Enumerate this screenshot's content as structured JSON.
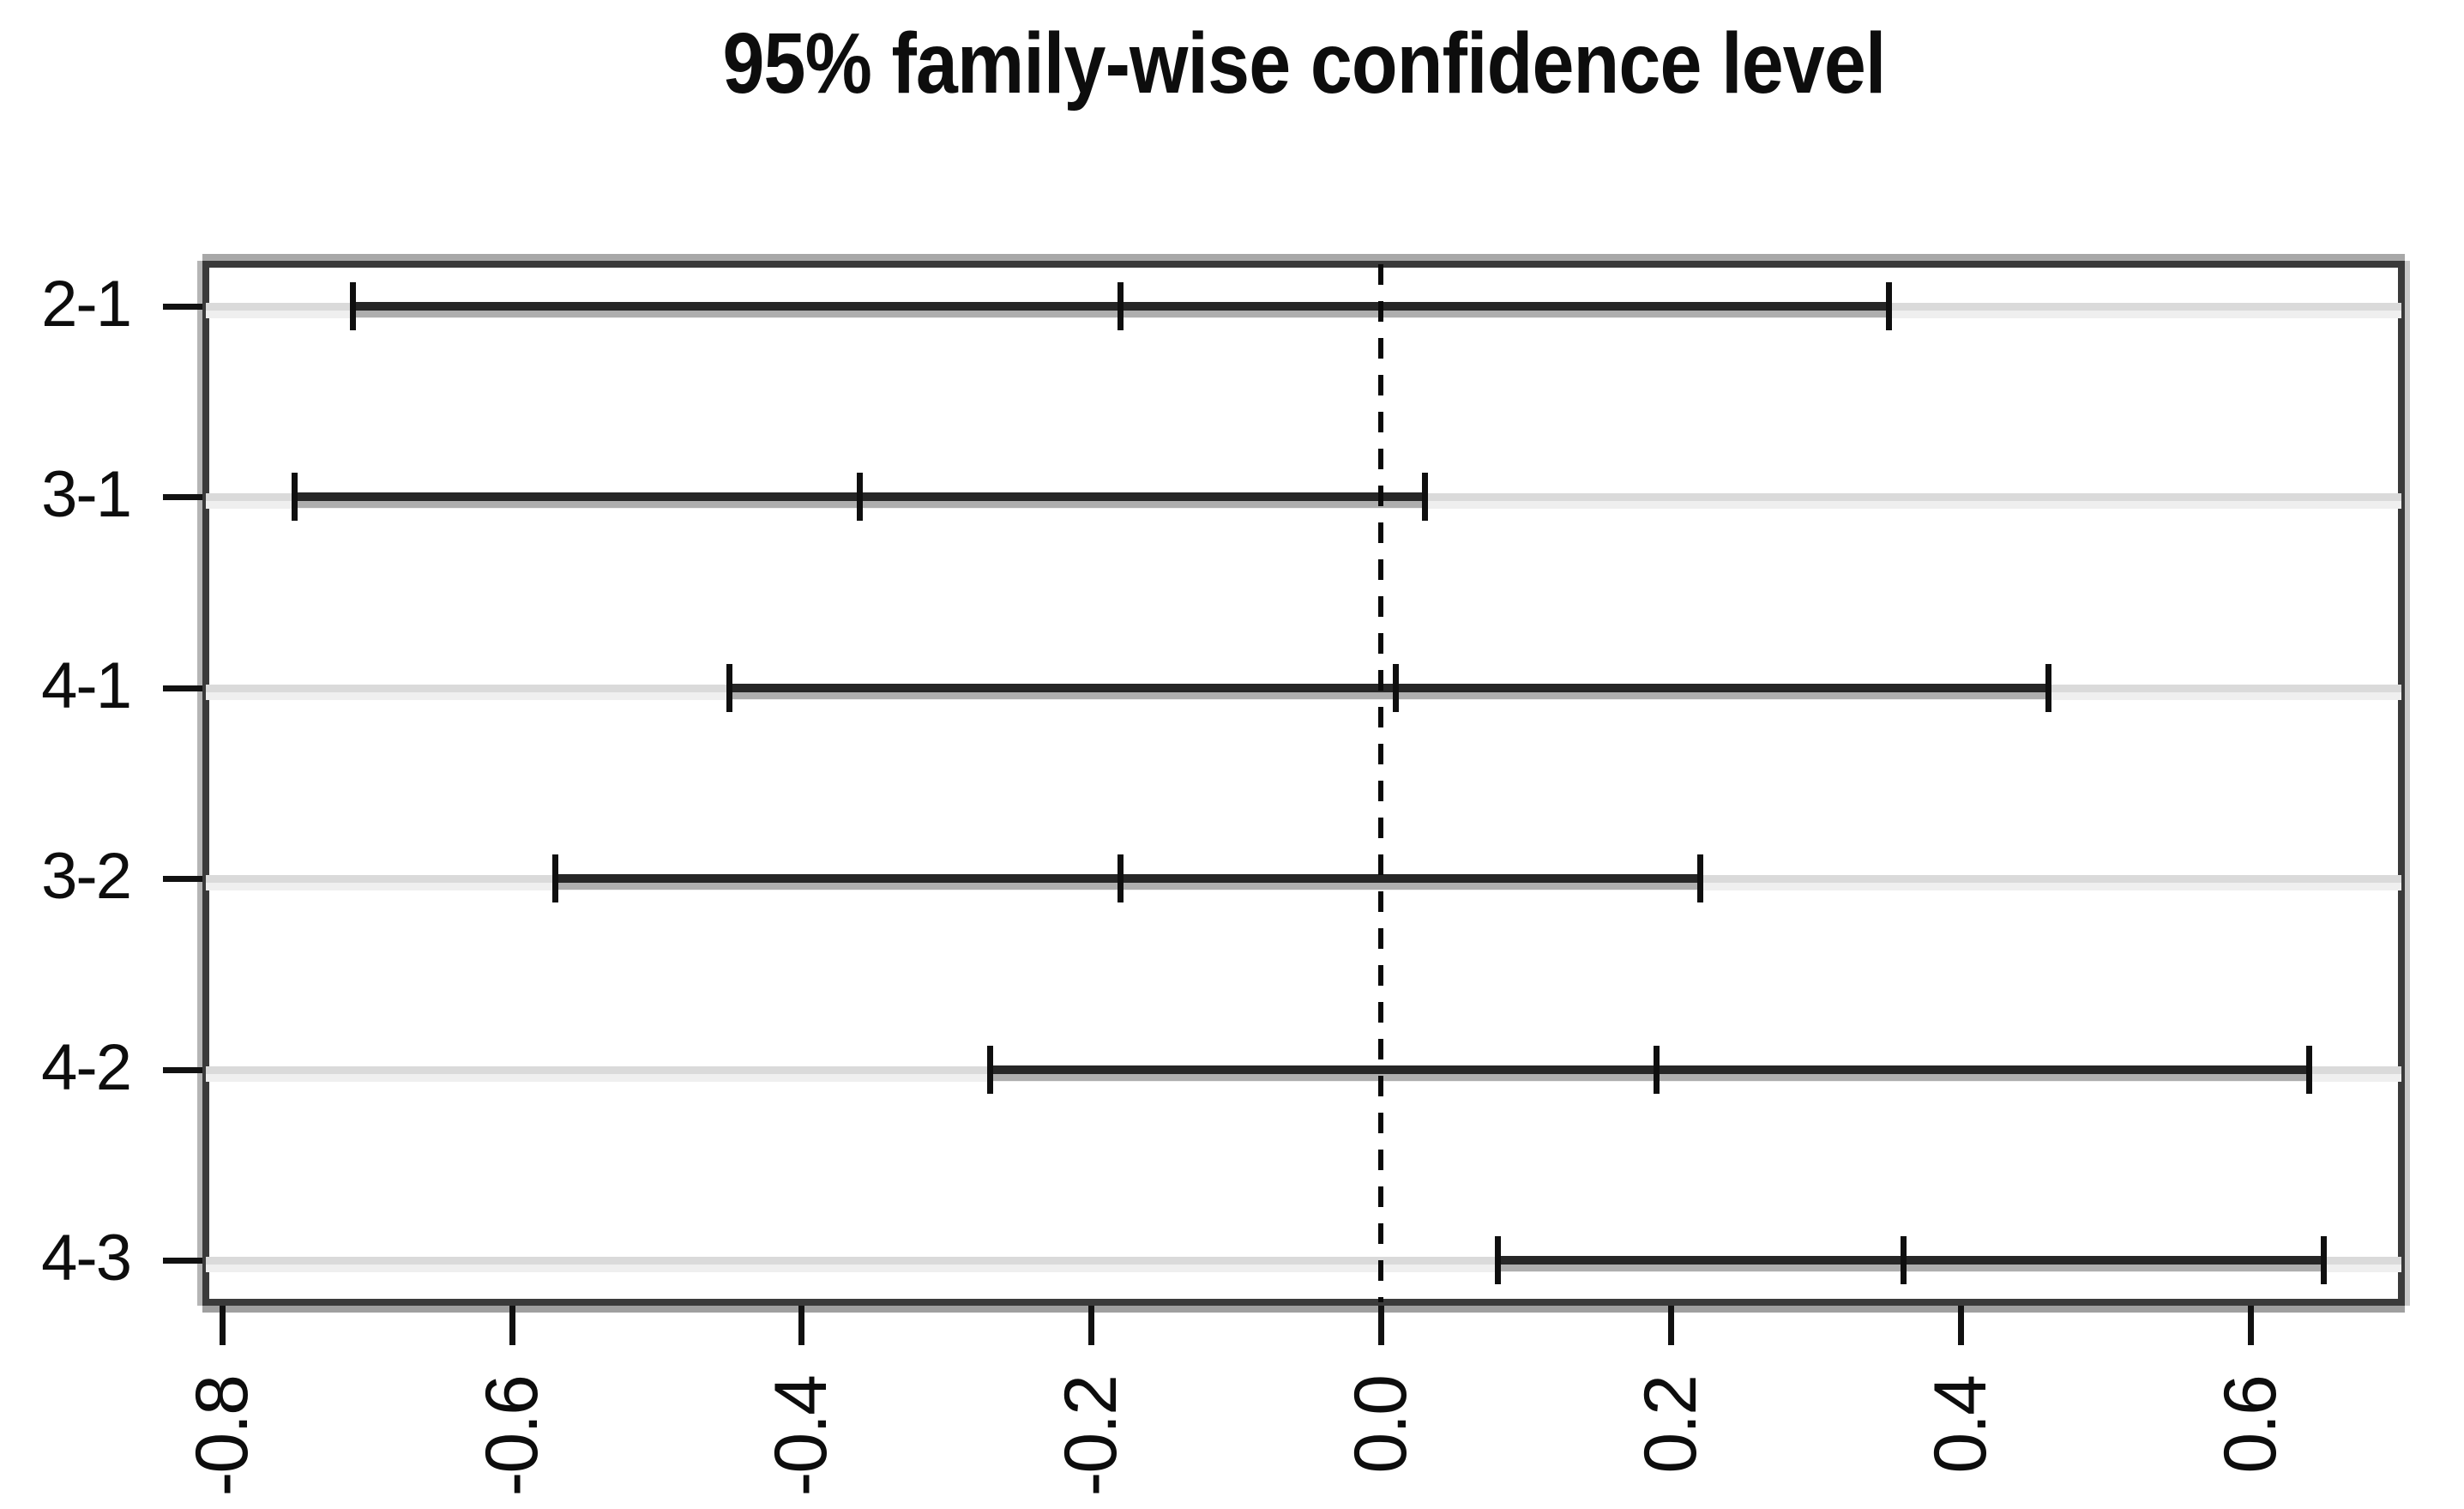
{
  "title": "95% family-wise confidence level",
  "chart_data": {
    "type": "scatter",
    "subtype": "tukey-hsd-confidence-intervals",
    "title": "95% family-wise confidence level",
    "xlabel": "",
    "ylabel": "",
    "orientation": "horizontal-intervals",
    "xlim": [
      -0.811,
      0.704
    ],
    "x_ticks": [
      -0.8,
      -0.6,
      -0.4,
      -0.2,
      0.0,
      0.2,
      0.4,
      0.6
    ],
    "x_tick_labels": [
      "-0.8",
      "-0.6",
      "-0.4",
      "-0.2",
      "0.0",
      "0.2",
      "0.4",
      "0.6"
    ],
    "x_tick_label_rotation_deg": 90,
    "reference_line_x": 0.0,
    "reference_line_style": "dashed",
    "grid": "horizontal-light-gray",
    "legend": "none",
    "comparisons": [
      {
        "label": "2-1",
        "lwr": -0.71,
        "diff": -0.18,
        "upr": 0.35
      },
      {
        "label": "3-1",
        "lwr": -0.75,
        "diff": -0.36,
        "upr": 0.03
      },
      {
        "label": "4-1",
        "lwr": -0.45,
        "diff": 0.01,
        "upr": 0.46
      },
      {
        "label": "3-2",
        "lwr": -0.57,
        "diff": -0.18,
        "upr": 0.22
      },
      {
        "label": "4-2",
        "lwr": -0.27,
        "diff": 0.19,
        "upr": 0.64
      },
      {
        "label": "4-3",
        "lwr": 0.08,
        "diff": 0.36,
        "upr": 0.65
      }
    ],
    "colors": {
      "interval_line": "#262626",
      "grid_line": "#dadada",
      "box_border": "#3a3a3a",
      "reference_line": "#0a0a0a",
      "text": "#0d0d0d",
      "background": "#ffffff"
    }
  }
}
